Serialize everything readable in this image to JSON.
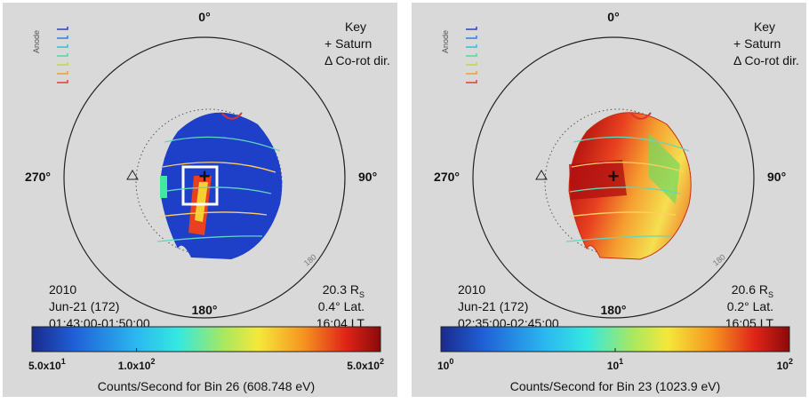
{
  "panels": [
    {
      "compass": {
        "top": "0°",
        "right": "90°",
        "bottom": "180°",
        "left": "270°"
      },
      "ring_label": "180",
      "anode_label": "Anode",
      "key": {
        "title": "Key",
        "items": [
          "+  Saturn",
          "Δ  Co-rot dir."
        ]
      },
      "info_left": [
        "2010",
        "Jun-21 (172)",
        "01:43:00-01:50:00"
      ],
      "info_right": [
        {
          "text": "20.3 R",
          "sub": "S"
        },
        {
          "text": "0.4° Lat."
        },
        {
          "text": "16:04 LT"
        }
      ],
      "colorbar": {
        "ticks": [
          {
            "base": "5.0x10",
            "exp": "1"
          },
          {
            "base": "1.0x10",
            "exp": "2"
          },
          {
            "base": "5.0x10",
            "exp": "2"
          }
        ],
        "label": "Counts/Second for Bin 26 (608.748 eV)"
      }
    },
    {
      "compass": {
        "top": "0°",
        "right": "90°",
        "bottom": "180°",
        "left": "270°"
      },
      "ring_label": "180",
      "anode_label": "Anode",
      "key": {
        "title": "Key",
        "items": [
          "+  Saturn",
          "Δ  Co-rot dir."
        ]
      },
      "info_left": [
        "2010",
        "Jun-21 (172)",
        "02:35:00-02:45:00"
      ],
      "info_right": [
        {
          "text": "20.6 R",
          "sub": "S"
        },
        {
          "text": "0.2° Lat."
        },
        {
          "text": "16:05 LT"
        }
      ],
      "colorbar": {
        "ticks": [
          {
            "base": "10",
            "exp": "0"
          },
          {
            "base": "10",
            "exp": "1"
          },
          {
            "base": "10",
            "exp": "2"
          }
        ],
        "label": "Counts/Second for Bin 23 (1023.9 eV)"
      }
    }
  ]
}
